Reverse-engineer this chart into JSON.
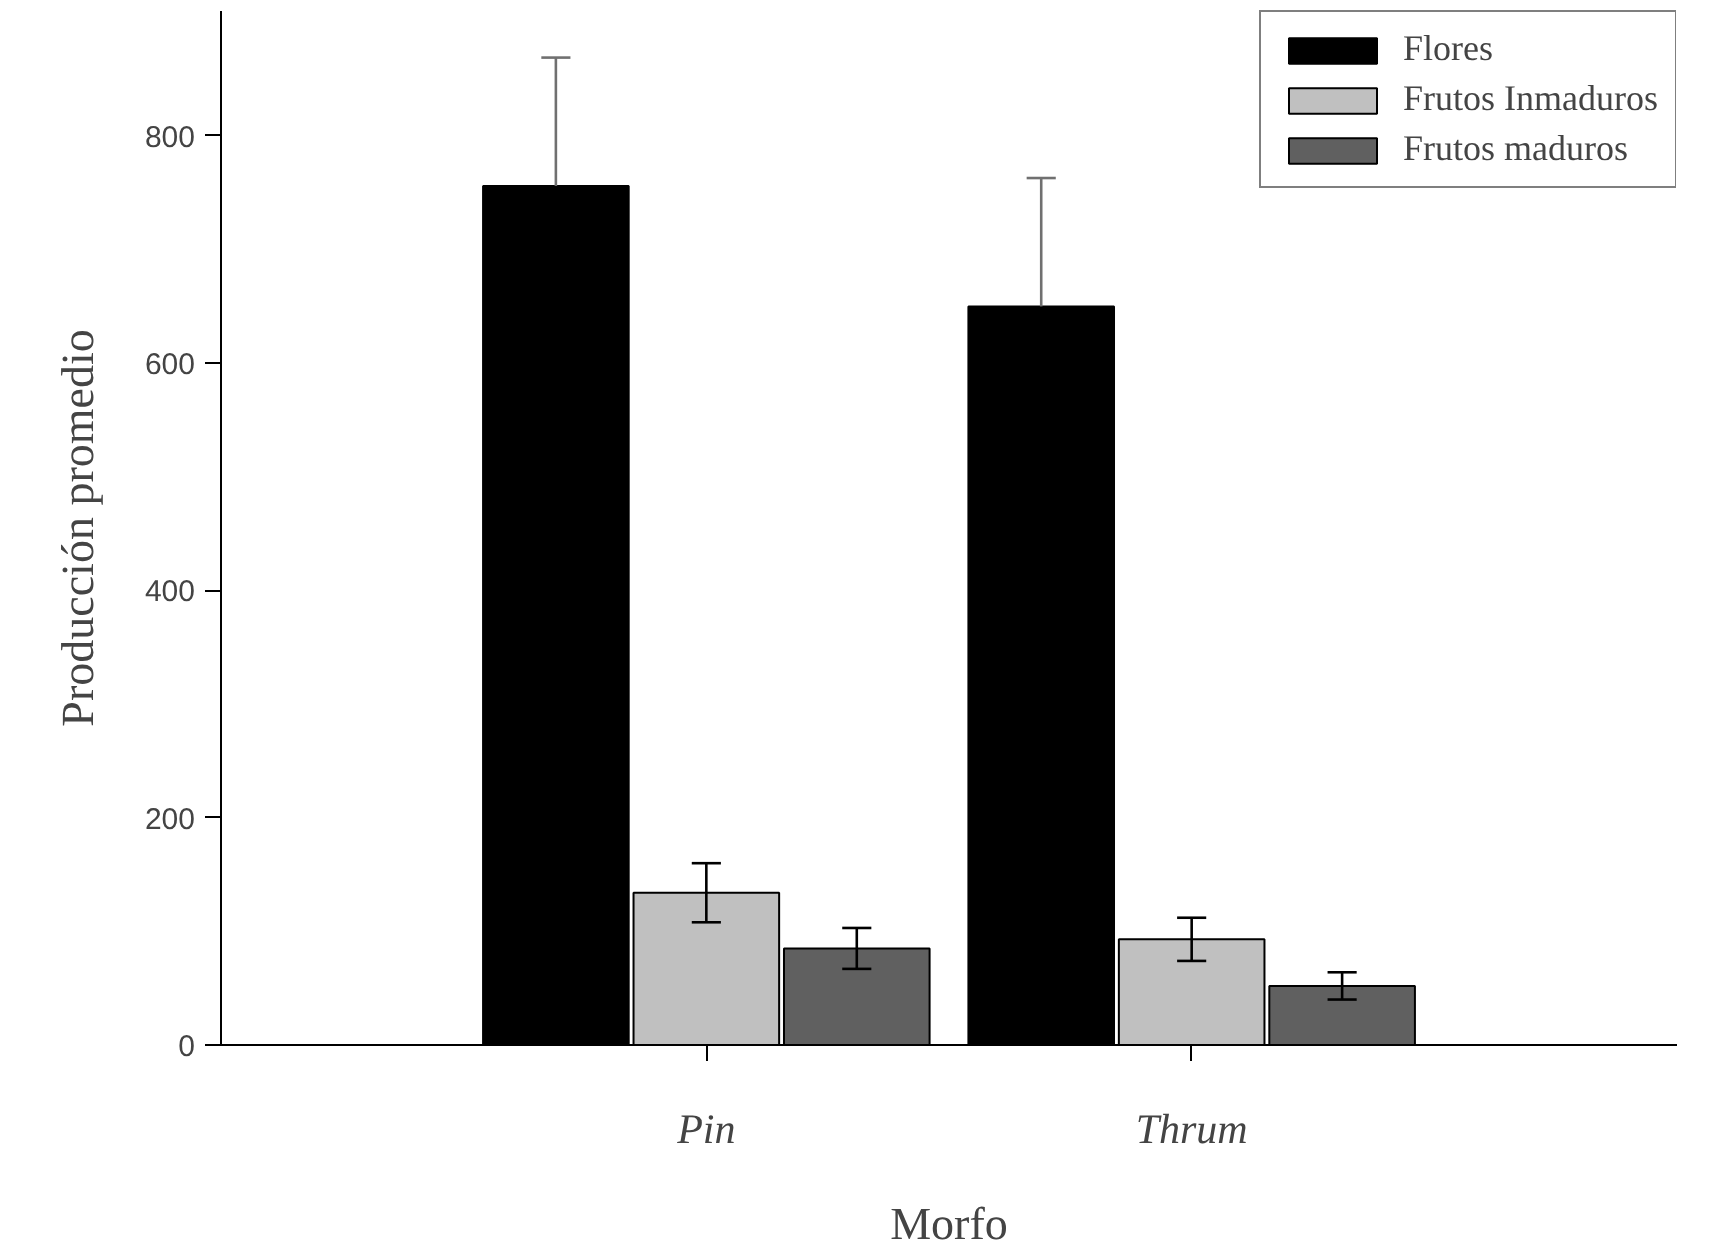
{
  "chart_data": {
    "type": "bar",
    "xlabel": "Morfo",
    "ylabel": "Producción promedio",
    "categories": [
      "Pin",
      "Thrum"
    ],
    "series": [
      {
        "name": "Flores",
        "color": "#000000",
        "values": [
          756,
          650
        ],
        "errors": [
          [
            756,
            869
          ],
          [
            650,
            763
          ]
        ]
      },
      {
        "name": "Frutos Inmaduros",
        "color": "#c0c0c0",
        "values": [
          134,
          93
        ],
        "errors": [
          26,
          19
        ]
      },
      {
        "name": "Frutos maduros",
        "color": "#606060",
        "values": [
          85,
          52
        ],
        "errors": [
          18,
          12
        ]
      }
    ],
    "ylim": [
      0,
      910
    ],
    "yticks": [
      0,
      200,
      400,
      600,
      800
    ],
    "grid": false,
    "legend": "top right"
  }
}
